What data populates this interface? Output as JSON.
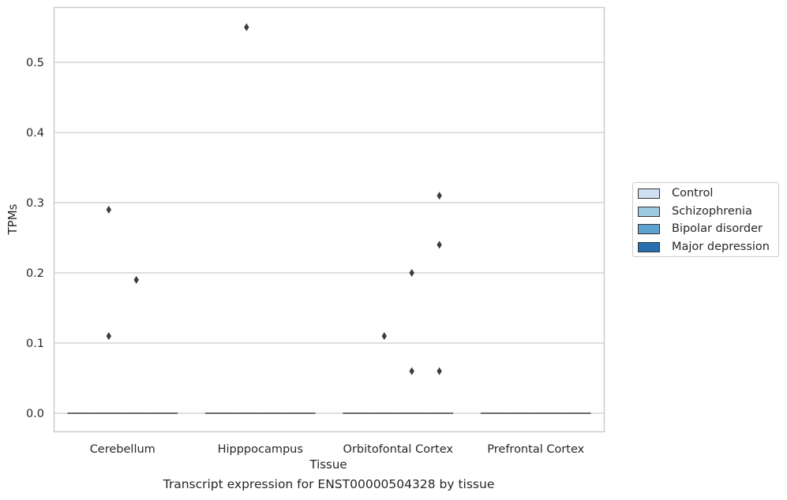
{
  "chart_data": {
    "type": "box",
    "title": "",
    "caption": "Transcript expression for ENST00000504328 by tissue",
    "xlabel": "Tissue",
    "ylabel": "TPMs",
    "ylim": [
      -0.027,
      0.579
    ],
    "yticks": [
      0.0,
      0.1,
      0.2,
      0.3,
      0.4,
      0.5
    ],
    "ytick_labels": [
      "0.0",
      "0.1",
      "0.2",
      "0.3",
      "0.4",
      "0.5"
    ],
    "grid": "horizontal",
    "legend_position": "right",
    "categories": [
      "Cerebellum",
      "Hipppocampus",
      "Orbitofontal Cortex",
      "Prefrontal Cortex"
    ],
    "series": [
      {
        "name": "Control",
        "color": "#cee0f1",
        "boxes": [
          {
            "median": 0
          },
          {
            "median": 0
          },
          {
            "median": 0
          },
          {
            "median": 0
          }
        ],
        "outliers": [
          [],
          [],
          [],
          []
        ]
      },
      {
        "name": "Schizophrenia",
        "color": "#9dc9e1",
        "boxes": [
          {
            "median": 0
          },
          {
            "median": 0
          },
          {
            "median": 0
          },
          {
            "median": 0
          }
        ],
        "outliers": [
          [
            0.11,
            0.29
          ],
          [
            0.55
          ],
          [
            0.11
          ],
          []
        ]
      },
      {
        "name": "Bipolar disorder",
        "color": "#5da3cf",
        "boxes": [
          {
            "median": 0
          },
          {
            "median": 0
          },
          {
            "median": 0
          },
          {
            "median": 0
          }
        ],
        "outliers": [
          [
            0.19
          ],
          [],
          [
            0.06,
            0.2
          ],
          []
        ]
      },
      {
        "name": "Major depression",
        "color": "#2a6fad",
        "boxes": [
          {
            "median": 0
          },
          {
            "median": 0
          },
          {
            "median": 0
          },
          {
            "median": 0
          }
        ],
        "outliers": [
          [],
          [],
          [
            0.06,
            0.24,
            0.31
          ],
          []
        ]
      }
    ]
  }
}
